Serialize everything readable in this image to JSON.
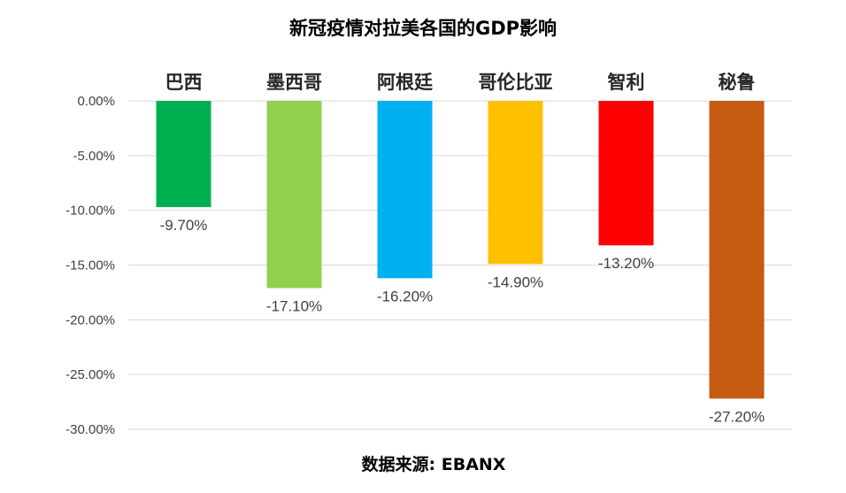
{
  "chart_data": {
    "type": "bar",
    "title": "新冠疫情对拉美各国的GDP影响",
    "categories": [
      "巴西",
      "墨西哥",
      "阿根廷",
      "哥伦比亚",
      "智利",
      "秘鲁"
    ],
    "values": [
      -9.7,
      -17.1,
      -16.2,
      -14.9,
      -13.2,
      -27.2
    ],
    "value_labels": [
      "-9.70%",
      "-17.10%",
      "-16.20%",
      "-14.90%",
      "-13.20%",
      "-27.20%"
    ],
    "colors": [
      "#00b050",
      "#92d050",
      "#00b0f0",
      "#ffc000",
      "#ff0000",
      "#c55a11"
    ],
    "y_ticks": [
      0,
      -5,
      -10,
      -15,
      -20,
      -25,
      -30
    ],
    "y_tick_labels": [
      "0.00%",
      "-5.00%",
      "-10.00%",
      "-15.00%",
      "-20.00%",
      "-25.00%",
      "-30.00%"
    ],
    "ylim": [
      -30,
      0
    ],
    "xlabel": "",
    "ylabel": "",
    "grid": true,
    "legend": "none",
    "category_axis_position": "top"
  },
  "footer": {
    "source": "数据来源: EBANX"
  }
}
